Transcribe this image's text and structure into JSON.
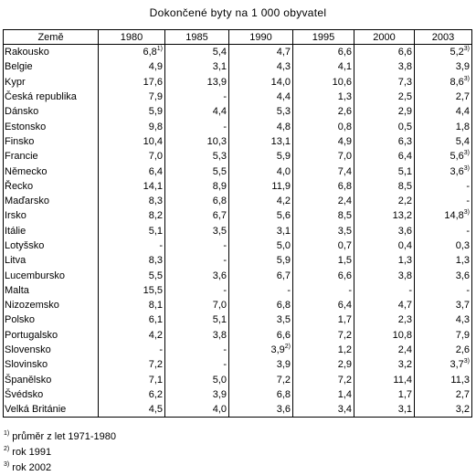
{
  "title": "Dokončené byty na 1 000 obyvatel",
  "table": {
    "header": [
      "Země",
      "1980",
      "1985",
      "1990",
      "1995",
      "2000",
      "2003"
    ],
    "rows": [
      {
        "label": "Rakousko",
        "cells": [
          {
            "value": "6,8",
            "sup": "1)"
          },
          "5,4",
          "4,7",
          "6,6",
          "6,6",
          {
            "value": "5,2",
            "sup": "3)"
          }
        ]
      },
      {
        "label": "Belgie",
        "cells": [
          "4,9",
          "3,1",
          "4,3",
          "4,1",
          "3,8",
          "3,9"
        ]
      },
      {
        "label": "Kypr",
        "cells": [
          "17,6",
          "13,9",
          "14,0",
          "10,6",
          "7,3",
          {
            "value": "8,6",
            "sup": "3)"
          }
        ]
      },
      {
        "label": "Česká republika",
        "cells": [
          "7,9",
          "-",
          "4,4",
          "1,3",
          "2,5",
          "2,7"
        ]
      },
      {
        "label": "Dánsko",
        "cells": [
          "5,9",
          "4,4",
          "5,3",
          "2,6",
          "2,9",
          "4,4"
        ]
      },
      {
        "label": "Estonsko",
        "cells": [
          "9,8",
          "-",
          "4,8",
          "0,8",
          "0,5",
          "1,8"
        ]
      },
      {
        "label": "Finsko",
        "cells": [
          "10,4",
          "10,3",
          "13,1",
          "4,9",
          "6,3",
          "5,4"
        ]
      },
      {
        "label": "Francie",
        "cells": [
          "7,0",
          "5,3",
          "5,9",
          "7,0",
          "6,4",
          {
            "value": "5,6",
            "sup": "3)"
          }
        ]
      },
      {
        "label": "Německo",
        "cells": [
          "6,4",
          "5,5",
          "4,0",
          "7,4",
          "5,1",
          {
            "value": "3,6",
            "sup": "3)"
          }
        ]
      },
      {
        "label": "Řecko",
        "cells": [
          "14,1",
          "8,9",
          "11,9",
          "6,8",
          "8,5",
          "-"
        ]
      },
      {
        "label": "Maďarsko",
        "cells": [
          "8,3",
          "6,8",
          "4,2",
          "2,4",
          "2,2",
          "-"
        ]
      },
      {
        "label": "Irsko",
        "cells": [
          "8,2",
          "6,7",
          "5,6",
          "8,5",
          "13,2",
          {
            "value": "14,8",
            "sup": "3)"
          }
        ]
      },
      {
        "label": "Itálie",
        "cells": [
          "5,1",
          "3,5",
          "3,1",
          "3,5",
          "3,6",
          "-"
        ]
      },
      {
        "label": "Lotyšsko",
        "cells": [
          "-",
          "-",
          "5,0",
          "0,7",
          "0,4",
          "0,3"
        ]
      },
      {
        "label": "Litva",
        "cells": [
          "8,3",
          "-",
          "5,9",
          "1,5",
          "1,3",
          "1,3"
        ]
      },
      {
        "label": "Lucembursko",
        "cells": [
          "5,5",
          "3,6",
          "6,7",
          "6,6",
          "3,8",
          "3,6"
        ]
      },
      {
        "label": "Malta",
        "cells": [
          "15,5",
          "-",
          "-",
          "-",
          "-",
          "-"
        ]
      },
      {
        "label": "Nizozemsko",
        "cells": [
          "8,1",
          "7,0",
          "6,8",
          "6,4",
          "4,7",
          "3,7"
        ]
      },
      {
        "label": "Polsko",
        "cells": [
          "6,1",
          "5,1",
          "3,5",
          "1,7",
          "2,3",
          "4,3"
        ]
      },
      {
        "label": "Portugalsko",
        "cells": [
          "4,2",
          "3,8",
          "6,6",
          "7,2",
          "10,8",
          "7,9"
        ]
      },
      {
        "label": "Slovensko",
        "cells": [
          "-",
          "-",
          {
            "value": "3,9",
            "sup": "2)"
          },
          "1,2",
          "2,4",
          "2,6"
        ]
      },
      {
        "label": "Slovinsko",
        "cells": [
          "7,2",
          "-",
          "3,9",
          "2,9",
          "3,2",
          {
            "value": "3,7",
            "sup": "3)"
          }
        ]
      },
      {
        "label": "Španělsko",
        "cells": [
          "7,1",
          "5,0",
          "7,2",
          "7,2",
          "11,4",
          "11,3"
        ]
      },
      {
        "label": "Švédsko",
        "cells": [
          "6,2",
          "3,9",
          "6,8",
          "1,4",
          "1,7",
          "2,7"
        ]
      },
      {
        "label": "Velká Británie",
        "cells": [
          "4,5",
          "4,0",
          "3,6",
          "3,4",
          "3,1",
          "3,2"
        ]
      }
    ]
  },
  "footnotes": [
    {
      "mark": "1)",
      "text": "průměr z let 1971-1980"
    },
    {
      "mark": "2)",
      "text": "rok 1991"
    },
    {
      "mark": "3)",
      "text": "rok 2002"
    }
  ]
}
